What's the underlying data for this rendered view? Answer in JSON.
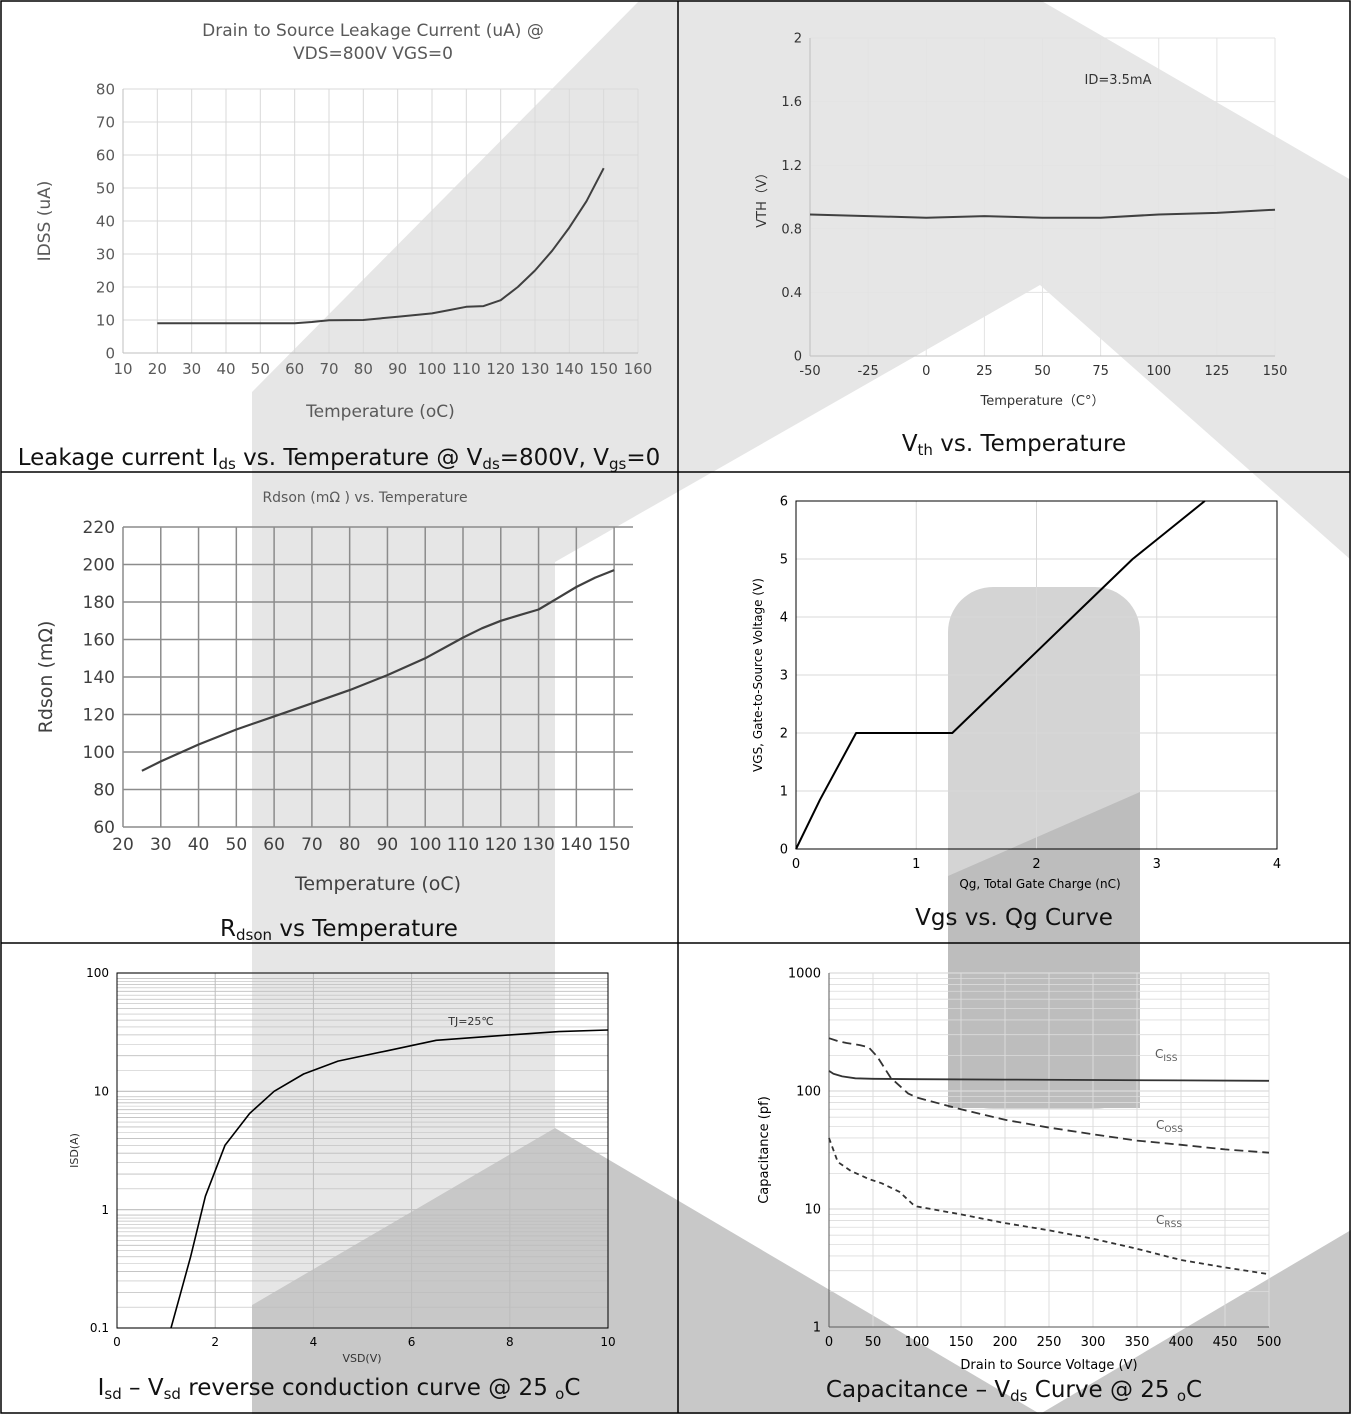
{
  "captions": [
    {
      "parts": [
        "Leakage current I",
        "ds",
        " vs. Temperature @ V",
        "ds",
        "=800V, V",
        "gs",
        "=0"
      ]
    },
    {
      "parts": [
        "V",
        "th",
        " vs. Temperature"
      ]
    },
    {
      "parts": [
        "R",
        "dson",
        " vs Temperature"
      ]
    },
    {
      "parts": [
        "Vgs vs. Qg Curve"
      ]
    },
    {
      "parts": [
        "I",
        "sd",
        " – V",
        "sd",
        " reverse conduction curve @ 25 ",
        "o",
        "C"
      ]
    },
    {
      "parts": [
        "Capacitance – V",
        "ds",
        " Curve @ 25 ",
        "o",
        "C"
      ]
    }
  ],
  "chart_data": [
    {
      "type": "line",
      "title": [
        "Drain to Source Leakage Current (uA) @",
        "VDS=800V VGS=0"
      ],
      "xlabel": "Temperature (oC)",
      "ylabel": "IDSS (uA)",
      "xlim": [
        10,
        160
      ],
      "ylim": [
        0,
        80
      ],
      "xticks": [
        10,
        20,
        30,
        40,
        50,
        60,
        70,
        80,
        90,
        100,
        110,
        120,
        130,
        140,
        150,
        160
      ],
      "yticks": [
        0,
        10,
        20,
        30,
        40,
        50,
        60,
        70,
        80
      ],
      "grid": true,
      "series": [
        {
          "x": [
            20,
            30,
            40,
            50,
            60,
            65,
            70,
            80,
            90,
            100,
            105,
            110,
            115,
            120,
            125,
            130,
            135,
            140,
            145,
            150
          ],
          "y": [
            9,
            9,
            9,
            9,
            9,
            9.4,
            9.9,
            10,
            11,
            12,
            13,
            14,
            14.2,
            16,
            20,
            25,
            31,
            38,
            46,
            56
          ]
        }
      ]
    },
    {
      "type": "line",
      "title": "",
      "xlabel": "Temperature（C°）",
      "ylabel": "VTH（V）",
      "annotation": "ID=3.5mA",
      "xlim": [
        -50,
        150
      ],
      "ylim": [
        0,
        2
      ],
      "xticks": [
        -50,
        -25,
        0,
        25,
        50,
        75,
        100,
        125,
        150
      ],
      "yticks": [
        0,
        0.4,
        0.8,
        1.2,
        1.6,
        2
      ],
      "grid": true,
      "series": [
        {
          "x": [
            -50,
            -25,
            0,
            25,
            50,
            75,
            100,
            125,
            150
          ],
          "y": [
            0.89,
            0.88,
            0.87,
            0.88,
            0.87,
            0.87,
            0.89,
            0.9,
            0.92
          ]
        }
      ]
    },
    {
      "type": "line",
      "title": "Rdson (mΩ ) vs. Temperature",
      "xlabel": "Temperature (oC)",
      "ylabel": "Rdson (mΩ)",
      "xlim": [
        20,
        155
      ],
      "ylim": [
        60,
        220
      ],
      "xticks": [
        20,
        30,
        40,
        50,
        60,
        70,
        80,
        90,
        100,
        110,
        120,
        130,
        140,
        150
      ],
      "yticks": [
        60,
        80,
        100,
        120,
        140,
        160,
        180,
        200,
        220
      ],
      "grid": true,
      "series": [
        {
          "x": [
            25,
            30,
            40,
            50,
            60,
            70,
            80,
            90,
            100,
            110,
            115,
            120,
            125,
            130,
            135,
            140,
            145,
            150
          ],
          "y": [
            90,
            95,
            104,
            112,
            119,
            126,
            133,
            141,
            150,
            161,
            166,
            170,
            173,
            176,
            182,
            188,
            193,
            197
          ]
        }
      ]
    },
    {
      "type": "line",
      "title": "",
      "xlabel": "Qg, Total Gate Charge (nC)",
      "ylabel": "VGS, Gate-to-Source Voltage (V)",
      "xlim": [
        0,
        4
      ],
      "ylim": [
        0,
        6
      ],
      "xticks": [
        0,
        1,
        2,
        3,
        4
      ],
      "yticks": [
        0,
        1,
        2,
        3,
        4,
        5,
        6
      ],
      "grid": true,
      "series": [
        {
          "x": [
            0,
            0.2,
            0.5,
            1.3,
            1.65,
            2.0,
            2.4,
            2.8,
            3.1,
            3.4
          ],
          "y": [
            0,
            0.85,
            2,
            2,
            2.7,
            3.4,
            4.2,
            5.0,
            5.5,
            6.0
          ]
        }
      ]
    },
    {
      "type": "line",
      "title": "",
      "xlabel": "VSD(V)",
      "ylabel": "ISD(A)",
      "annotation": "TJ=25℃",
      "xlim": [
        0,
        10
      ],
      "ylim": [
        0.1,
        100
      ],
      "yscale": "log",
      "xticks": [
        0,
        2,
        4,
        6,
        8,
        10
      ],
      "yticks": [
        0.1,
        1,
        10,
        100
      ],
      "ytick_labels": [
        "0.1",
        "1",
        "10",
        "100"
      ],
      "grid": true,
      "series": [
        {
          "x": [
            1.1,
            1.3,
            1.5,
            1.8,
            2.2,
            2.7,
            3.2,
            3.8,
            4.5,
            5.5,
            6.5,
            8.0,
            9.0,
            10.0
          ],
          "y": [
            0.1,
            0.2,
            0.4,
            1.3,
            3.5,
            6.5,
            10,
            14,
            18,
            22,
            27,
            30,
            32,
            33
          ]
        }
      ]
    },
    {
      "type": "line",
      "title": "",
      "xlabel": "Drain to Source Voltage (V)",
      "ylabel": "Capacitance (pf)",
      "xlim": [
        0,
        500
      ],
      "ylim": [
        1,
        1000
      ],
      "yscale": "log",
      "xticks": [
        0,
        50,
        100,
        150,
        200,
        250,
        300,
        350,
        400,
        450,
        500
      ],
      "yticks": [
        1,
        10,
        100,
        1000
      ],
      "ytick_labels": [
        "1",
        "10",
        "100",
        "1000"
      ],
      "grid": true,
      "series": [
        {
          "name": "C",
          "sub": "ISS",
          "dash": "solid",
          "x": [
            0,
            5,
            15,
            30,
            50,
            100,
            200,
            300,
            400,
            500
          ],
          "y": [
            148,
            140,
            133,
            128,
            127,
            126,
            125,
            124,
            123,
            122
          ]
        },
        {
          "name": "C",
          "sub": "OSS",
          "dash": "long",
          "x": [
            0,
            10,
            20,
            35,
            45,
            55,
            70,
            90,
            100,
            150,
            200,
            250,
            300,
            350,
            400,
            450,
            500
          ],
          "y": [
            280,
            265,
            255,
            245,
            235,
            195,
            130,
            95,
            88,
            70,
            57,
            49,
            43,
            38,
            35,
            32,
            30
          ]
        },
        {
          "name": "C",
          "sub": "RSS",
          "dash": "short",
          "x": [
            0,
            10,
            25,
            45,
            60,
            80,
            95,
            100,
            150,
            200,
            250,
            300,
            350,
            400,
            450,
            500
          ],
          "y": [
            40,
            25,
            21,
            18,
            16.5,
            14,
            11,
            10.5,
            9,
            7.6,
            6.6,
            5.6,
            4.6,
            3.7,
            3.2,
            2.8
          ]
        }
      ]
    }
  ]
}
